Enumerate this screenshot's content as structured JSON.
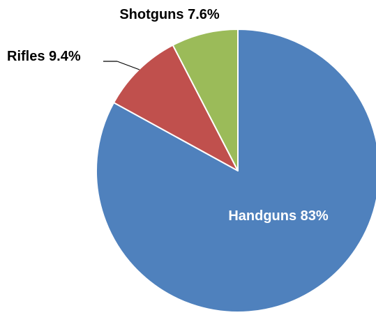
{
  "chart_data": {
    "type": "pie",
    "slices": [
      {
        "label": "Handguns 83%",
        "name": "Handguns",
        "value": 83,
        "color": "#4f81bd"
      },
      {
        "label": "Rifles 9.4%",
        "name": "Rifles",
        "value": 9.4,
        "color": "#c0504d"
      },
      {
        "label": "Shotguns 7.6%",
        "name": "Shotguns",
        "value": 7.6,
        "color": "#9bbb59"
      }
    ],
    "start": "top, clockwise",
    "legend": "none"
  }
}
